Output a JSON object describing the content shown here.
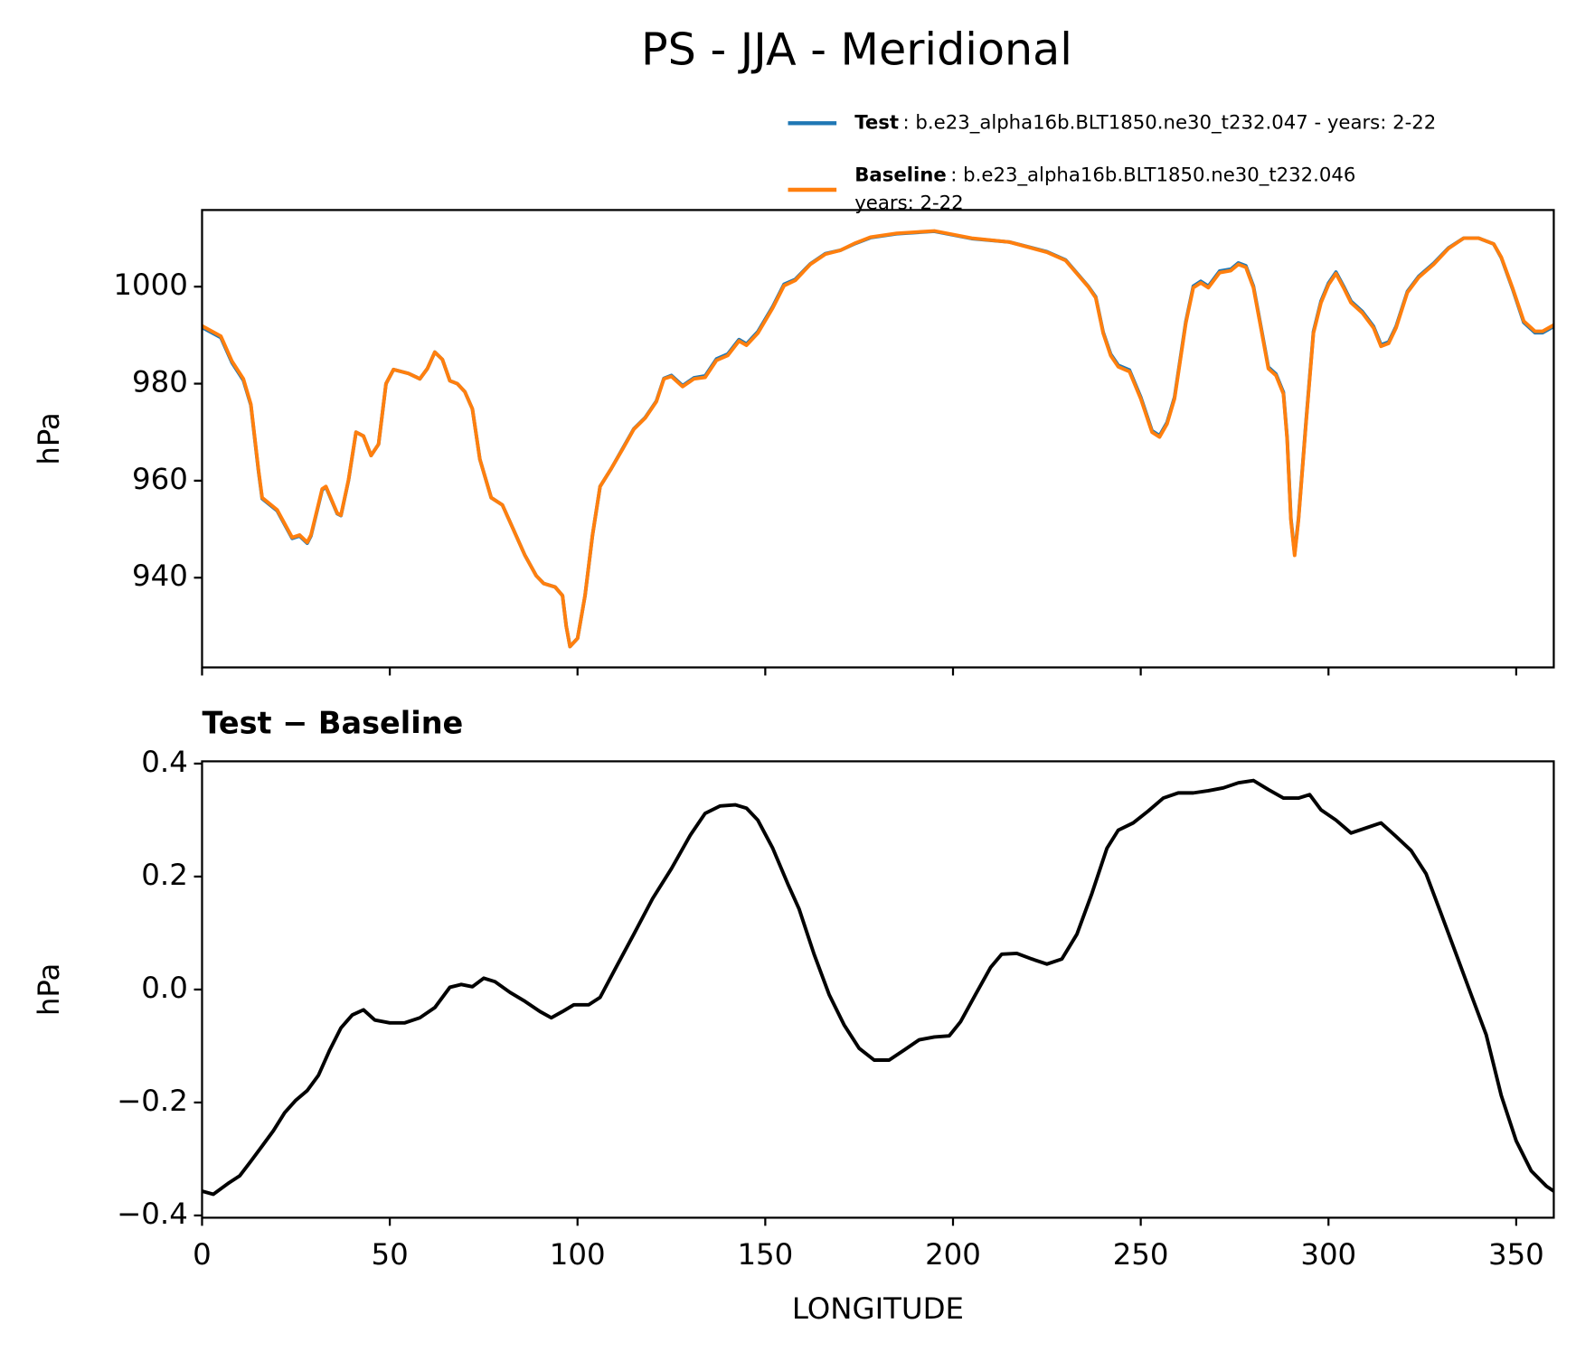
{
  "title": "PS - JJA - Meridional",
  "chart_data": [
    {
      "type": "line",
      "ylabel": "hPa",
      "xlim": [
        0,
        360
      ],
      "xticks": [
        0,
        50,
        100,
        150,
        200,
        250,
        300,
        350
      ],
      "ylim": [
        921.5,
        1015.8
      ],
      "yticks": [
        940,
        960,
        980,
        1000
      ],
      "x": [
        0,
        5,
        8,
        11,
        13,
        15,
        16,
        20,
        24,
        26,
        28,
        29,
        32,
        33,
        36,
        37,
        39,
        41,
        43,
        45,
        47,
        49,
        51,
        55,
        58,
        60,
        62,
        64,
        66,
        68,
        70,
        72,
        74,
        77,
        80,
        83,
        86,
        89,
        91,
        94,
        96,
        97,
        98,
        100,
        102,
        104,
        106,
        109,
        112,
        115,
        118,
        121,
        123,
        125,
        128,
        131,
        134,
        137,
        140,
        143,
        145,
        148,
        152,
        155,
        158,
        162,
        166,
        170,
        174,
        178,
        185,
        195,
        205,
        215,
        225,
        230,
        236,
        238,
        240,
        242,
        244,
        247,
        250,
        253,
        255,
        257,
        259,
        262,
        264,
        266,
        268,
        271,
        274,
        276,
        278,
        280,
        282,
        284,
        286,
        288,
        289,
        290,
        291,
        292,
        294,
        296,
        298,
        300,
        302,
        304,
        306,
        309,
        312,
        314,
        316,
        318,
        321,
        324,
        328,
        332,
        336,
        340,
        344,
        346,
        349,
        352,
        355,
        357,
        360
      ],
      "series": [
        {
          "name": "Test",
          "description": [
            ": b.e23_alpha16b.BLT1850.ne30_t232.047 - years: 2-22"
          ],
          "color": "#1f77b4",
          "values": [
            991.6,
            989.5,
            984.3,
            980.7,
            975.6,
            962.1,
            956.3,
            953.8,
            948.1,
            948.6,
            947.1,
            948.6,
            958.1,
            958.7,
            953.2,
            952.8,
            960.1,
            970,
            969.2,
            965.2,
            967.5,
            980,
            982.9,
            982.1,
            981,
            983.1,
            986.5,
            985,
            980.6,
            980,
            978.3,
            974.8,
            964.4,
            956.5,
            955,
            949.8,
            944.6,
            940.4,
            938.8,
            938.1,
            936.3,
            930,
            925.8,
            927.5,
            936.3,
            948.8,
            958.8,
            962.5,
            966.6,
            970.7,
            973,
            976.4,
            981.1,
            981.7,
            979.6,
            981.2,
            981.6,
            985.1,
            986.1,
            989.1,
            988.2,
            990.7,
            995.9,
            1000.5,
            1001.5,
            1004.7,
            1006.8,
            1007.5,
            1008.9,
            1010.1,
            1010.9,
            1011.4,
            1009.9,
            1009.2,
            1007.2,
            1005.5,
            1000.1,
            997.9,
            990.6,
            986.1,
            983.8,
            982.8,
            977.2,
            970.3,
            969.3,
            972,
            977.2,
            992.8,
            1000.1,
            1001.1,
            1000.1,
            1003.2,
            1003.6,
            1004.9,
            1004.3,
            1000.1,
            991.8,
            983.4,
            982,
            978.2,
            968.8,
            952.2,
            944.9,
            952.2,
            972,
            990.7,
            997,
            1000.7,
            1003,
            1000.1,
            997,
            994.9,
            991.8,
            988,
            988.6,
            991.8,
            999,
            1002.1,
            1004.8,
            1008,
            1010,
            1010,
            1008.8,
            1006,
            999.6,
            992.6,
            990.5,
            990.5,
            991.8
          ]
        },
        {
          "name": "Baseline",
          "description": [
            ": b.e23_alpha16b.BLT1850.ne30_t232.046",
            "years: 2-22"
          ],
          "color": "#ff7f0e",
          "values": [
            991.9,
            989.8,
            984.6,
            981,
            975.8,
            962.3,
            956.5,
            954,
            948.3,
            948.8,
            947.3,
            948.8,
            958.3,
            958.8,
            953.3,
            952.9,
            960.2,
            970,
            969.2,
            965.2,
            967.5,
            980,
            982.9,
            982.1,
            981,
            983.1,
            986.5,
            985,
            980.6,
            980,
            978.3,
            974.8,
            964.4,
            956.5,
            955,
            949.8,
            944.6,
            940.4,
            938.8,
            938.1,
            936.3,
            930,
            925.8,
            927.5,
            936.3,
            948.8,
            958.8,
            962.5,
            966.5,
            970.6,
            972.9,
            976.3,
            981,
            981.5,
            979.4,
            981,
            981.3,
            984.8,
            985.8,
            988.8,
            987.9,
            990.4,
            995.6,
            1000.2,
            1001.3,
            1004.6,
            1006.7,
            1007.5,
            1009,
            1010.2,
            1011,
            1011.5,
            1010,
            1009.2,
            1007.1,
            1005.4,
            1000,
            997.7,
            990.4,
            985.8,
            983.5,
            982.5,
            976.9,
            970,
            969,
            971.7,
            976.9,
            992.5,
            999.8,
            1000.8,
            999.8,
            1002.9,
            1003.3,
            1004.6,
            1004,
            999.8,
            991.5,
            983.1,
            981.7,
            977.9,
            968.5,
            951.9,
            944.6,
            951.9,
            971.7,
            990.4,
            996.7,
            1000.4,
            1002.7,
            999.8,
            996.7,
            994.6,
            991.5,
            987.7,
            988.3,
            991.5,
            998.8,
            1001.9,
            1004.6,
            1007.9,
            1010,
            1010,
            1008.8,
            1006.1,
            999.8,
            992.9,
            990.8,
            990.8,
            992.1
          ]
        }
      ]
    },
    {
      "type": "line",
      "title": "Test − Baseline",
      "xlabel": "LONGITUDE",
      "ylabel": "hPa",
      "xlim": [
        0,
        360
      ],
      "xticks": [
        0,
        50,
        100,
        150,
        200,
        250,
        300,
        350
      ],
      "ylim": [
        -0.404,
        0.404
      ],
      "yticks": [
        0.4,
        0.2,
        {
          "value": 0,
          "label": "0.0"
        },
        {
          "value": -0.2,
          "label": "−0.2"
        },
        {
          "value": -0.4,
          "label": "−0.4"
        }
      ],
      "color": "#000000",
      "x": [
        0,
        3,
        7,
        10,
        13,
        16,
        19,
        22,
        25,
        28,
        31,
        34,
        37,
        40,
        43,
        46,
        50,
        54,
        58,
        62,
        66,
        69,
        72,
        75,
        78,
        82,
        86,
        90,
        93,
        96,
        99,
        103,
        106,
        110,
        115,
        120,
        125,
        130,
        134,
        138,
        142,
        145,
        148,
        152,
        156,
        159,
        163,
        167,
        171,
        175,
        179,
        183,
        187,
        191,
        195,
        199,
        202,
        206,
        210,
        213,
        217,
        221,
        225,
        229,
        233,
        237,
        241,
        244,
        248,
        252,
        256,
        260,
        264,
        268,
        272,
        276,
        280,
        284,
        288,
        292,
        295,
        298,
        302,
        306,
        310,
        314,
        318,
        322,
        326,
        330,
        334,
        338,
        342,
        346,
        350,
        354,
        358,
        360
      ],
      "values": [
        -0.357,
        -0.3625,
        -0.343,
        -0.33,
        -0.304,
        -0.277,
        -0.25,
        -0.218,
        -0.196,
        -0.179,
        -0.152,
        -0.107,
        -0.068,
        -0.045,
        -0.036,
        -0.054,
        -0.059,
        -0.059,
        -0.05,
        -0.032,
        0.004,
        0.009,
        0.005,
        0.02,
        0.014,
        -0.005,
        -0.021,
        -0.039,
        -0.05,
        -0.039,
        -0.027,
        -0.027,
        -0.014,
        0.036,
        0.098,
        0.161,
        0.214,
        0.273,
        0.312,
        0.325,
        0.327,
        0.321,
        0.3,
        0.25,
        0.187,
        0.143,
        0.0625,
        -0.009,
        -0.0625,
        -0.104,
        -0.125,
        -0.125,
        -0.107,
        -0.089,
        -0.084,
        -0.082,
        -0.057,
        -0.009,
        0.039,
        0.0625,
        0.064,
        0.054,
        0.045,
        0.054,
        0.098,
        0.17,
        0.25,
        0.282,
        0.295,
        0.316,
        0.339,
        0.348,
        0.348,
        0.352,
        0.357,
        0.366,
        0.37,
        0.354,
        0.339,
        0.339,
        0.345,
        0.318,
        0.3,
        0.277,
        0.286,
        0.295,
        0.271,
        0.246,
        0.205,
        0.134,
        0.0625,
        -0.009,
        -0.08,
        -0.1875,
        -0.268,
        -0.321,
        -0.348,
        -0.357
      ]
    }
  ]
}
